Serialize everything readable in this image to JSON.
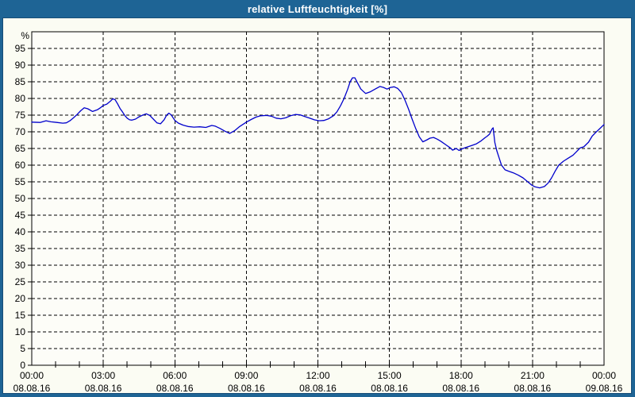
{
  "window": {
    "title": "relative Luftfeuchtigkeit [%]"
  },
  "colors": {
    "titlebar_bg": "#1e6495",
    "titlebar_text": "#ffffff",
    "window_border": "#1e6495",
    "content_bg": "#fbfcf3",
    "plot_bg": "#fdfdf8",
    "grid": "#000000",
    "axis": "#000000",
    "text": "#000000",
    "line": "#0000cc"
  },
  "chart_data": {
    "type": "line",
    "title": "relative Luftfeuchtigkeit [%]",
    "xlabel": "",
    "ylabel": "%",
    "ylim": [
      0,
      100
    ],
    "yticks": [
      0,
      5,
      10,
      15,
      20,
      25,
      30,
      35,
      40,
      45,
      50,
      55,
      60,
      65,
      70,
      75,
      80,
      85,
      90,
      95
    ],
    "grid": "dashed",
    "legend_position": "none",
    "xlim_hours": [
      0,
      24
    ],
    "minor_x_tick_every_hours": 1,
    "x_ticks": [
      {
        "hour": 0,
        "time": "00:00",
        "date": "08.08.16"
      },
      {
        "hour": 3,
        "time": "03:00",
        "date": "08.08.16"
      },
      {
        "hour": 6,
        "time": "06:00",
        "date": "08.08.16"
      },
      {
        "hour": 9,
        "time": "09:00",
        "date": "08.08.16"
      },
      {
        "hour": 12,
        "time": "12:00",
        "date": "08.08.16"
      },
      {
        "hour": 15,
        "time": "15:00",
        "date": "08.08.16"
      },
      {
        "hour": 18,
        "time": "18:00",
        "date": "08.08.16"
      },
      {
        "hour": 21,
        "time": "21:00",
        "date": "08.08.16"
      },
      {
        "hour": 24,
        "time": "00:00",
        "date": "09.08.16"
      }
    ],
    "series": [
      {
        "name": "relative Luftfeuchtigkeit",
        "unit": "%",
        "color": "#0000cc",
        "points": [
          [
            0,
            72.9
          ],
          [
            0.35,
            72.8
          ],
          [
            0.6,
            73.3
          ],
          [
            0.8,
            73
          ],
          [
            1.05,
            72.8
          ],
          [
            1.3,
            72.6
          ],
          [
            1.45,
            72.7
          ],
          [
            1.6,
            73.3
          ],
          [
            1.75,
            74.2
          ],
          [
            1.9,
            75.2
          ],
          [
            2.05,
            76.3
          ],
          [
            2.2,
            77.2
          ],
          [
            2.35,
            76.9
          ],
          [
            2.55,
            76.1
          ],
          [
            2.75,
            76.6
          ],
          [
            2.9,
            77.3
          ],
          [
            3,
            77.9
          ],
          [
            3.15,
            78.3
          ],
          [
            3.3,
            79.2
          ],
          [
            3.4,
            79.9
          ],
          [
            3.5,
            79.6
          ],
          [
            3.6,
            78.4
          ],
          [
            3.7,
            77
          ],
          [
            3.8,
            76
          ],
          [
            3.9,
            74.9
          ],
          [
            4,
            74.1
          ],
          [
            4.1,
            73.6
          ],
          [
            4.2,
            73.5
          ],
          [
            4.35,
            73.8
          ],
          [
            4.5,
            74.5
          ],
          [
            4.65,
            75
          ],
          [
            4.8,
            75.4
          ],
          [
            4.95,
            74.9
          ],
          [
            5.1,
            73.8
          ],
          [
            5.25,
            72.7
          ],
          [
            5.4,
            72.4
          ],
          [
            5.55,
            73.6
          ],
          [
            5.65,
            74.9
          ],
          [
            5.75,
            75.6
          ],
          [
            5.85,
            75.1
          ],
          [
            6,
            73.4
          ],
          [
            6.15,
            72.6
          ],
          [
            6.35,
            72
          ],
          [
            6.55,
            71.6
          ],
          [
            6.8,
            71.4
          ],
          [
            7.05,
            71.5
          ],
          [
            7.3,
            71.3
          ],
          [
            7.55,
            71.9
          ],
          [
            7.7,
            71.7
          ],
          [
            7.9,
            71
          ],
          [
            8.1,
            70.2
          ],
          [
            8.3,
            69.5
          ],
          [
            8.5,
            70.3
          ],
          [
            8.7,
            71.5
          ],
          [
            9,
            72.9
          ],
          [
            9.2,
            73.7
          ],
          [
            9.4,
            74.4
          ],
          [
            9.6,
            74.8
          ],
          [
            9.85,
            74.9
          ],
          [
            10.05,
            74.7
          ],
          [
            10.25,
            74.1
          ],
          [
            10.45,
            73.9
          ],
          [
            10.65,
            74.2
          ],
          [
            10.85,
            74.8
          ],
          [
            11.05,
            75.2
          ],
          [
            11.25,
            75.1
          ],
          [
            11.45,
            74.6
          ],
          [
            11.65,
            74.1
          ],
          [
            11.85,
            73.6
          ],
          [
            12.05,
            73.3
          ],
          [
            12.25,
            73.4
          ],
          [
            12.45,
            73.9
          ],
          [
            12.65,
            74.8
          ],
          [
            12.8,
            76
          ],
          [
            12.95,
            77.8
          ],
          [
            13.1,
            80
          ],
          [
            13.25,
            82.8
          ],
          [
            13.35,
            85
          ],
          [
            13.45,
            86.2
          ],
          [
            13.55,
            86.2
          ],
          [
            13.65,
            84.8
          ],
          [
            13.8,
            82.8
          ],
          [
            14,
            81.5
          ],
          [
            14.2,
            82
          ],
          [
            14.4,
            82.8
          ],
          [
            14.6,
            83.6
          ],
          [
            14.75,
            83.3
          ],
          [
            14.9,
            82.8
          ],
          [
            15.05,
            83.3
          ],
          [
            15.2,
            83.5
          ],
          [
            15.35,
            83
          ],
          [
            15.5,
            81.8
          ],
          [
            15.65,
            79.5
          ],
          [
            15.8,
            76.8
          ],
          [
            15.95,
            73.8
          ],
          [
            16.1,
            71
          ],
          [
            16.25,
            68.5
          ],
          [
            16.4,
            67
          ],
          [
            16.55,
            67.5
          ],
          [
            16.7,
            68.1
          ],
          [
            16.85,
            68.3
          ],
          [
            17,
            67.8
          ],
          [
            17.15,
            67.2
          ],
          [
            17.35,
            66.2
          ],
          [
            17.55,
            65.2
          ],
          [
            17.65,
            64.5
          ],
          [
            17.8,
            65
          ],
          [
            17.92,
            64.4
          ],
          [
            18.05,
            64.9
          ],
          [
            18.25,
            65.4
          ],
          [
            18.45,
            65.9
          ],
          [
            18.65,
            66.4
          ],
          [
            18.85,
            67.3
          ],
          [
            19,
            68.2
          ],
          [
            19.1,
            68.7
          ],
          [
            19.2,
            69.3
          ],
          [
            19.3,
            70.8
          ],
          [
            19.35,
            71.2
          ],
          [
            19.42,
            66.8
          ],
          [
            19.5,
            64.4
          ],
          [
            19.6,
            62.2
          ],
          [
            19.7,
            60
          ],
          [
            19.85,
            58.6
          ],
          [
            20,
            58.2
          ],
          [
            20.2,
            57.7
          ],
          [
            20.4,
            57
          ],
          [
            20.6,
            56.2
          ],
          [
            20.8,
            55
          ],
          [
            20.95,
            54.1
          ],
          [
            21.1,
            53.5
          ],
          [
            21.3,
            53.2
          ],
          [
            21.5,
            53.6
          ],
          [
            21.65,
            54.6
          ],
          [
            21.8,
            56.2
          ],
          [
            21.95,
            58.2
          ],
          [
            22.1,
            60
          ],
          [
            22.3,
            61.2
          ],
          [
            22.5,
            62.1
          ],
          [
            22.7,
            63
          ],
          [
            22.85,
            64.1
          ],
          [
            23,
            65.2
          ],
          [
            23.15,
            65.5
          ],
          [
            23.35,
            66.9
          ],
          [
            23.5,
            68.7
          ],
          [
            23.65,
            69.8
          ],
          [
            23.8,
            70.8
          ],
          [
            24,
            72.2
          ]
        ]
      }
    ]
  }
}
